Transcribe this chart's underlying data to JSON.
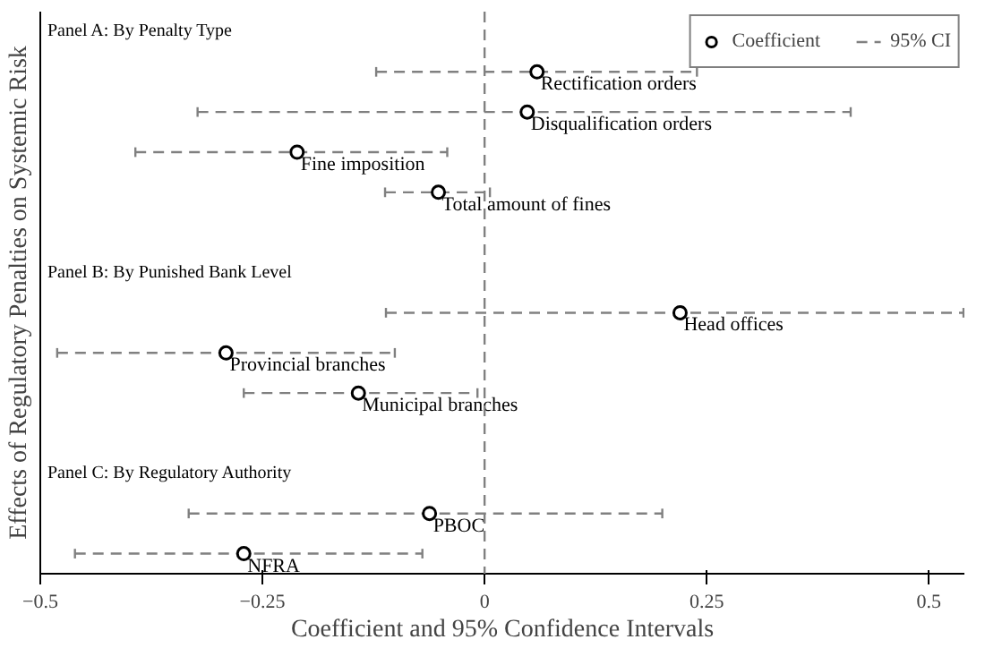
{
  "chart_data": {
    "type": "scatter",
    "orientation": "horizontal",
    "xlabel": "Coefficient and 95% Confidence Intervals",
    "ylabel": "Effects of Regulatory Penalties on Systemic Risk",
    "categories": [
      null,
      "Rectification orders",
      "Disqualification orders",
      "Fine imposition",
      "Total amount of fines",
      null,
      null,
      "Head offices",
      "Provincial branches",
      "Municipal branches",
      null,
      null,
      "PBOC",
      "NFRA"
    ],
    "series": [
      {
        "name": "Coefficient",
        "color": "#000000",
        "values": [
          null,
          0.059,
          0.048,
          -0.211,
          -0.052,
          null,
          null,
          0.22,
          -0.291,
          -0.142,
          null,
          null,
          -0.062,
          -0.271
        ],
        "errors": [
          null,
          [
            -0.122,
            0.239
          ],
          [
            -0.323,
            0.412
          ],
          [
            -0.393,
            -0.042
          ],
          [
            -0.112,
            0.006
          ],
          null,
          null,
          [
            -0.111,
            0.539
          ],
          [
            -0.481,
            -0.101
          ],
          [
            -0.271,
            -0.008
          ],
          null,
          null,
          [
            -0.333,
            0.2
          ],
          [
            -0.461,
            -0.07
          ]
        ]
      }
    ],
    "annotations": [
      "Panel A: By Penalty Type",
      "Panel B: By Punished Bank Level",
      "Panel C: By Regulatory Authority",
      "95% CI"
    ],
    "xlim": [
      -0.5,
      0.54
    ],
    "xticks": [
      {
        "value": -0.5,
        "label": "−0.5"
      },
      {
        "value": -0.25,
        "label": "−0.25"
      },
      0,
      0.25,
      0.5
    ],
    "ref_lines": [
      {
        "axis": "x",
        "value": 0,
        "color": "#808080",
        "line_style": "dashed"
      }
    ],
    "tick_labels": "x",
    "grid": false,
    "legend": "top right",
    "marker": "circle",
    "line_style": "dashed"
  }
}
